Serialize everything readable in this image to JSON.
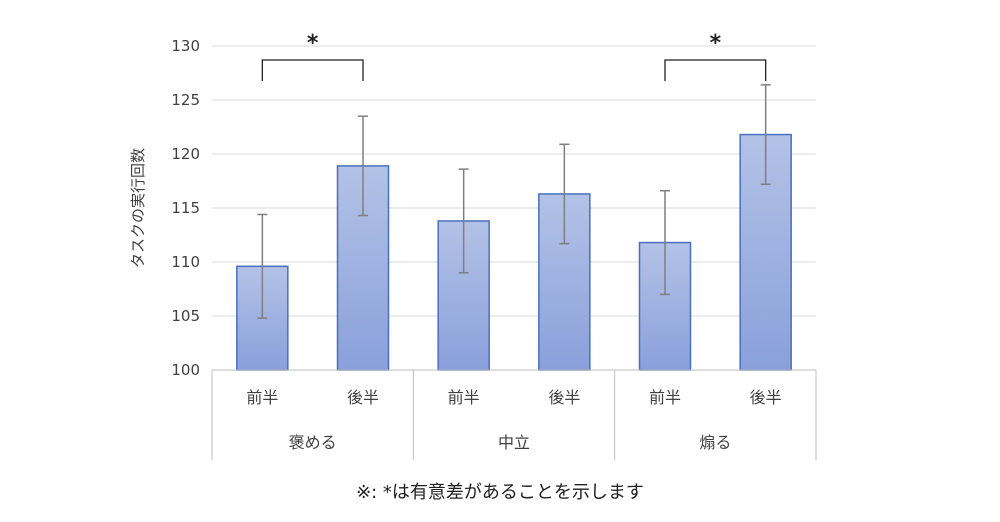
{
  "chart_data": {
    "type": "bar",
    "title": "",
    "ylabel": "タスクの実行回数",
    "xlabel": "",
    "ylim": [
      100,
      130
    ],
    "yticks": [
      100,
      105,
      110,
      115,
      120,
      125,
      130
    ],
    "grid": true,
    "groups": [
      {
        "label": "褒める",
        "categories": [
          "前半",
          "後半"
        ]
      },
      {
        "label": "中立",
        "categories": [
          "前半",
          "後半"
        ]
      },
      {
        "label": "煽る",
        "categories": [
          "前半",
          "後半"
        ]
      }
    ],
    "categories": [
      "前半",
      "後半",
      "前半",
      "後半",
      "前半",
      "後半"
    ],
    "values": [
      109.6,
      118.9,
      113.8,
      116.3,
      111.8,
      121.8
    ],
    "error": [
      4.8,
      4.6,
      4.8,
      4.6,
      4.8,
      4.6
    ],
    "significance": [
      {
        "from": 0,
        "to": 1,
        "label": "*"
      },
      {
        "from": 4,
        "to": 5,
        "label": "*"
      }
    ],
    "bar_color": "#8fa6dc",
    "bar_color_top": "#b3c2e6",
    "bar_color_bottom": "#8aa0db",
    "bar_border_color": "#4a6fbf",
    "error_color": "#7f7f7f"
  },
  "footnote": "※: *は有意差があることを示します"
}
